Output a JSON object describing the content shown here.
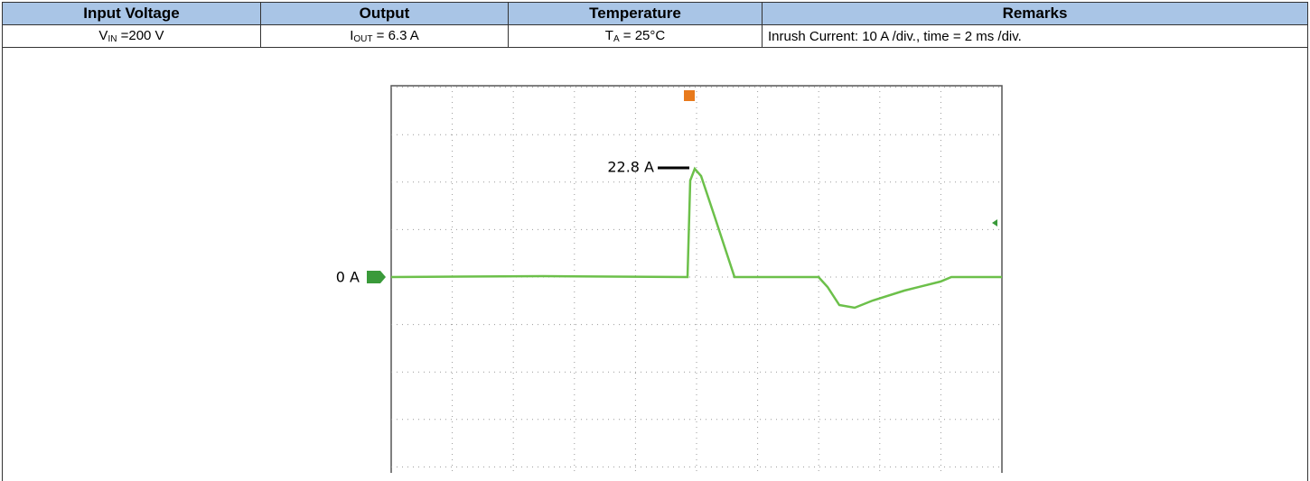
{
  "table": {
    "header": [
      "Input Voltage",
      "Output",
      "Temperature",
      "Remarks"
    ],
    "row": [
      {
        "main": "V",
        "sub": "IN",
        "rest": " =200 V"
      },
      {
        "main": "I",
        "sub": "OUT",
        "rest": " = 6.3 A"
      },
      {
        "main": "T",
        "sub": "A",
        "rest": " = 25°C"
      },
      {
        "main": "Inrush Current: 10 A /div., time = 2 ms /div."
      }
    ]
  },
  "scope": {
    "peak_label": "22.8 A",
    "zero_label": "0 A"
  }
}
